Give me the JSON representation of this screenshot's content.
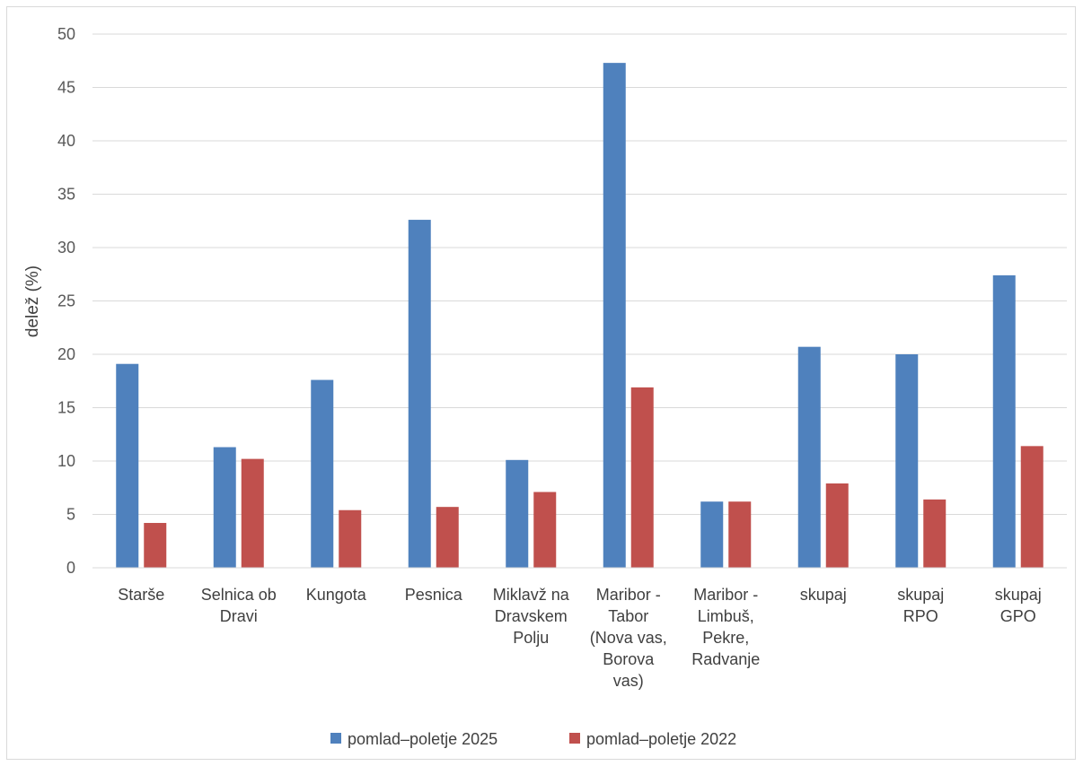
{
  "chart_data": {
    "type": "bar",
    "title": "",
    "xlabel": "",
    "ylabel": "delež (%)",
    "ylim": [
      0,
      50
    ],
    "yticks": [
      0,
      5,
      10,
      15,
      20,
      25,
      30,
      35,
      40,
      45,
      50
    ],
    "grid": true,
    "legend_position": "bottom",
    "categories": [
      [
        "Starše"
      ],
      [
        "Selnica ob",
        "Dravi"
      ],
      [
        "Kungota"
      ],
      [
        "Pesnica"
      ],
      [
        "Miklavž na",
        "Dravskem",
        "Polju"
      ],
      [
        "Maribor -",
        "Tabor",
        "(Nova vas,",
        "Borova",
        "vas)"
      ],
      [
        "Maribor -",
        "Limbuš,",
        "Pekre,",
        "Radvanje"
      ],
      [
        "skupaj"
      ],
      [
        "skupaj",
        "RPO"
      ],
      [
        "skupaj",
        "GPO"
      ]
    ],
    "series": [
      {
        "name": "pomlad–poletje 2025",
        "color": "#4f81bd",
        "values": [
          19.1,
          11.3,
          17.6,
          32.6,
          10.1,
          47.3,
          6.2,
          20.7,
          20.0,
          27.4
        ]
      },
      {
        "name": "pomlad–poletje 2022",
        "color": "#c0504d",
        "values": [
          4.2,
          10.2,
          5.4,
          5.7,
          7.1,
          16.9,
          6.2,
          7.9,
          6.4,
          11.4
        ]
      }
    ]
  }
}
